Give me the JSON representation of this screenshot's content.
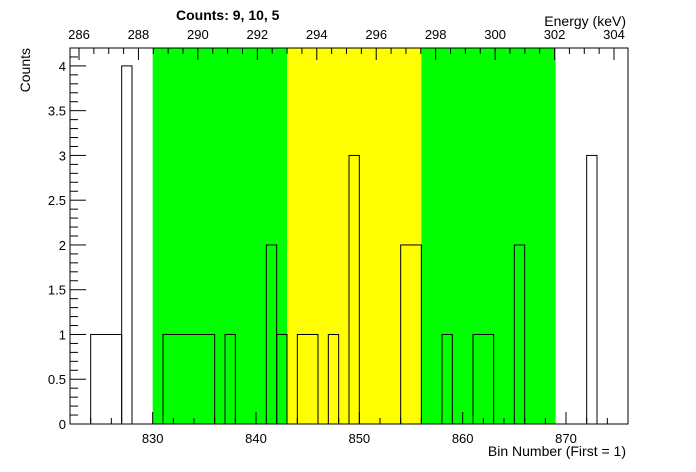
{
  "chart_data": {
    "type": "bar",
    "title": "Counts:   9,   10,   5",
    "xlabel": "Bin Number (First = 1)",
    "ylabel": "Counts",
    "x2label": "Energy (keV)",
    "xlim": [
      822,
      876
    ],
    "ylim": [
      0,
      4.2
    ],
    "x_ticks": [
      "830",
      "840",
      "850",
      "860",
      "870"
    ],
    "x2_ticks": [
      "286",
      "288",
      "290",
      "292",
      "294",
      "296",
      "298",
      "300",
      "302",
      "304"
    ],
    "y_ticks": [
      "0",
      "0.5",
      "1",
      "1.5",
      "2",
      "2.5",
      "3",
      "3.5",
      "4"
    ],
    "regions": [
      {
        "from": 830,
        "to": 843,
        "color": "#00ff00"
      },
      {
        "from": 843,
        "to": 856,
        "color": "#ffff00"
      },
      {
        "from": 856,
        "to": 869,
        "color": "#00ff00"
      }
    ],
    "bin_edges": [
      824,
      827,
      828,
      831,
      836,
      837,
      838,
      841,
      842,
      843,
      844,
      846,
      847,
      848,
      849,
      850,
      854,
      856,
      858,
      859,
      861,
      863,
      865,
      866,
      872,
      873
    ],
    "values": [
      1,
      4,
      0,
      1,
      0,
      1,
      0,
      2,
      1,
      0,
      1,
      0,
      1,
      0,
      3,
      0,
      2,
      0,
      1,
      0,
      1,
      0,
      2,
      0,
      3
    ],
    "line_color": "#000000"
  }
}
